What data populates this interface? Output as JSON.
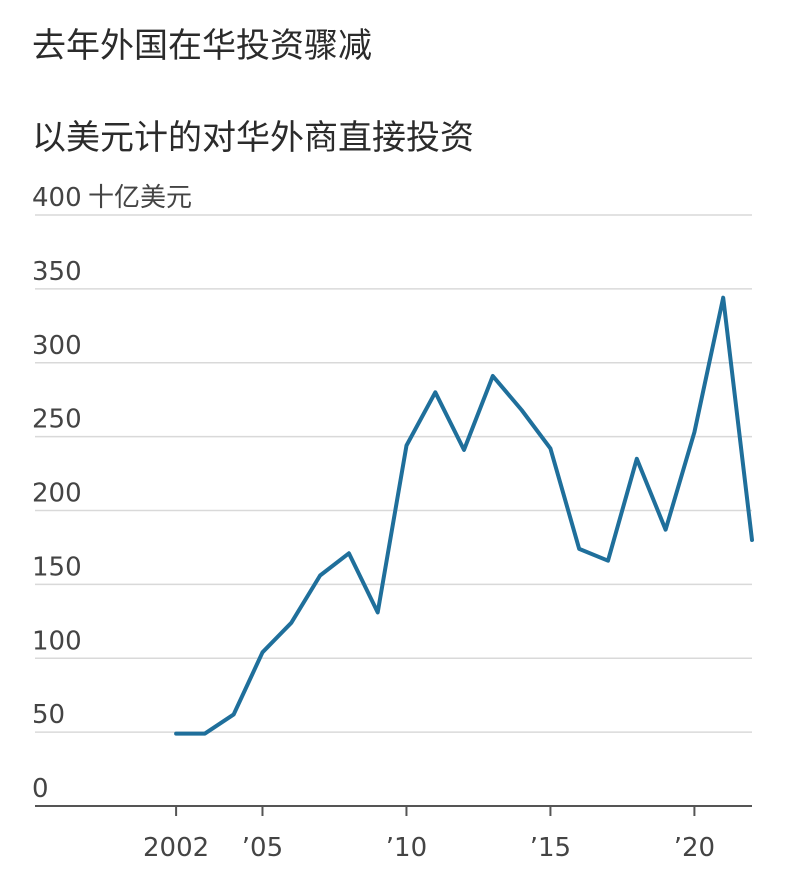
{
  "title": "去年外国在华投资骤减",
  "subtitle": "以美元计的对华外商直接投资",
  "chart_data": {
    "type": "line",
    "unit_label": "十亿美元",
    "ylim": [
      0,
      400
    ],
    "yticks": [
      "0",
      "50",
      "100",
      "150",
      "200",
      "250",
      "300",
      "350",
      "400"
    ],
    "xticks": [
      {
        "x": 2002,
        "label": "2002"
      },
      {
        "x": 2005,
        "label": "’05"
      },
      {
        "x": 2010,
        "label": "’10"
      },
      {
        "x": 2015,
        "label": "’15"
      },
      {
        "x": 2020,
        "label": "’20"
      }
    ],
    "grid": true,
    "series": [
      {
        "color": "#1f6f9b",
        "x": [
          2002,
          2003,
          2004,
          2005,
          2006,
          2007,
          2008,
          2009,
          2010,
          2011,
          2012,
          2013,
          2014,
          2015,
          2016,
          2017,
          2018,
          2019,
          2020,
          2021,
          2022
        ],
        "values": [
          49,
          49,
          62,
          104,
          124,
          156,
          171,
          131,
          244,
          280,
          241,
          291,
          268,
          242,
          174,
          166,
          235,
          187,
          253,
          344,
          180
        ]
      }
    ]
  }
}
